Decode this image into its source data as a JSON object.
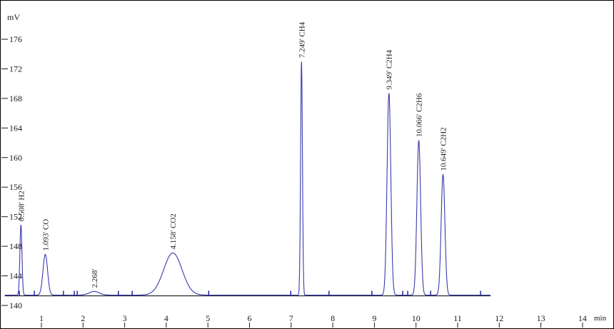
{
  "colors": {
    "background": "#ffffff",
    "frame": "#000000",
    "trace": "#3a3aad",
    "trace_dark": "#00008b",
    "integration_line": "#26262b",
    "axis_text": "#1a1a1a",
    "peak_label_text": "#222222"
  },
  "y_axis": {
    "unit": "mV",
    "ticks": [
      140,
      144,
      148,
      152,
      156,
      160,
      164,
      168,
      172,
      176
    ]
  },
  "x_axis": {
    "unit": "min",
    "ticks": [
      1,
      2,
      3,
      4,
      5,
      6,
      7,
      8,
      9,
      10,
      11,
      12,
      13,
      14
    ]
  },
  "chart_data": {
    "type": "line",
    "title": "",
    "xlabel": "min",
    "ylabel": "mV",
    "xlim": [
      0,
      14.7
    ],
    "ylim": [
      140,
      179
    ],
    "grid": false,
    "legend": false,
    "baseline_mv": 141.4,
    "trace_start_min": 0.12,
    "trace_end_min": 11.79,
    "peaks": [
      {
        "rt_min": 0.508,
        "label": "0.508'  H2",
        "compound": "H2",
        "apex_mv": 150.9,
        "sigma_min": 0.025
      },
      {
        "rt_min": 1.093,
        "label": "1.093'  CO",
        "compound": "CO",
        "apex_mv": 146.9,
        "sigma_min": 0.055
      },
      {
        "rt_min": 2.268,
        "label": "2.268'",
        "compound": "",
        "apex_mv": 141.9,
        "sigma_min": 0.12
      },
      {
        "rt_min": 4.158,
        "label": "4.158'  CO2",
        "compound": "CO2",
        "apex_mv": 147.1,
        "sigma_min": 0.22
      },
      {
        "rt_min": 7.249,
        "label": "7.249'  CH4",
        "compound": "CH4",
        "apex_mv": 173.0,
        "sigma_min": 0.022
      },
      {
        "rt_min": 9.349,
        "label": "9.349'  C2H4",
        "compound": "C2H4",
        "apex_mv": 168.7,
        "sigma_min": 0.045
      },
      {
        "rt_min": 10.066,
        "label": "10.066'  C2H6",
        "compound": "C2H6",
        "apex_mv": 162.3,
        "sigma_min": 0.045
      },
      {
        "rt_min": 10.649,
        "label": "10.649'  C2H2",
        "compound": "C2H2",
        "apex_mv": 157.7,
        "sigma_min": 0.045
      }
    ],
    "integration_marks_min": [
      0.47,
      0.83,
      1.53,
      1.79,
      1.86,
      2.85,
      3.18,
      5.02,
      6.99,
      7.91,
      8.94,
      9.68,
      9.8,
      10.35,
      11.55
    ]
  }
}
